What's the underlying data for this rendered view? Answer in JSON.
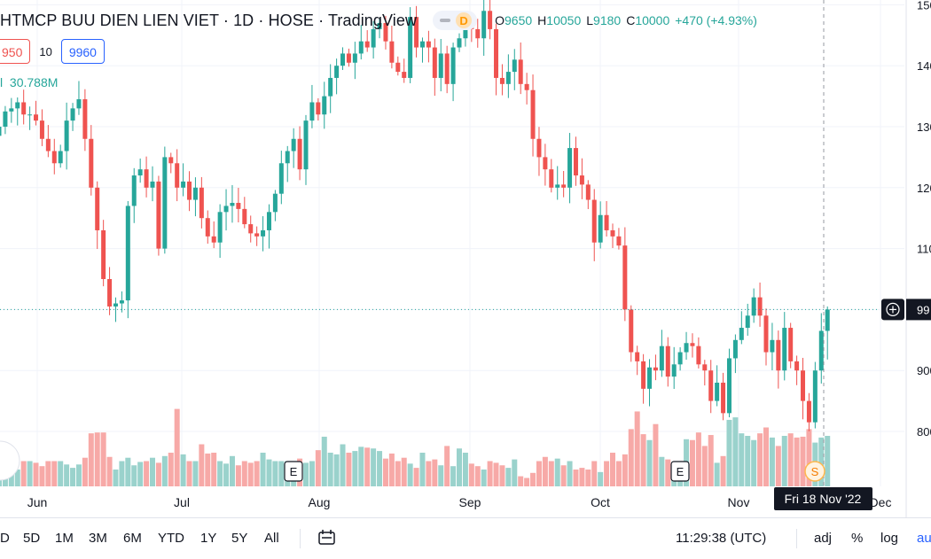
{
  "header": {
    "title": "HTMCP BUU DIEN LIEN VIET · 1D · HOSE · TradingView",
    "badge_letter": "D",
    "ohlc": [
      {
        "k": "O",
        "v": "9650"
      },
      {
        "k": "H",
        "v": "10050"
      },
      {
        "k": "L",
        "v": "9180"
      },
      {
        "k": "C",
        "v": "10000"
      },
      {
        "k": "",
        "v": "+470 (+4.93%)"
      }
    ]
  },
  "trade": {
    "sell": "950",
    "spread": "10",
    "buy": "9960"
  },
  "volume_label": {
    "prefix": "l",
    "value": "30.788M"
  },
  "axis": {
    "price_labels": [
      "150",
      "140",
      "130",
      "120",
      "110",
      "900",
      "800"
    ],
    "current_price_label": "99",
    "crosshair_date": "Fri 18 Nov '22",
    "months": [
      "Jun",
      "Jul",
      "Aug",
      "Sep",
      "Oct",
      "Nov",
      "Dec"
    ],
    "event_markers": [
      "E",
      "E",
      "S"
    ]
  },
  "bottom_bar": {
    "timeframes": [
      "D",
      "5D",
      "1M",
      "3M",
      "6M",
      "YTD",
      "1Y",
      "5Y",
      "All"
    ],
    "clock": "11:29:38 (UTC)",
    "adj": "adj",
    "percent": "%",
    "log": "log",
    "auto": "au"
  },
  "colors": {
    "up": "#26a69a",
    "down": "#ef5350",
    "vol_up": "#9ad2cc",
    "vol_down": "#f7a9a7",
    "grid": "#f0f3fa",
    "crosshair": "#9598a1"
  },
  "chart_data": {
    "type": "candlestick",
    "title": "HTMCP BUU DIEN LIEN VIET · 1D · HOSE",
    "x_range": [
      "2022-05-25",
      "2022-11-18"
    ],
    "ylim": [
      7400,
      15200
    ],
    "y_ticks": [
      8000,
      9000,
      10000,
      11000,
      12000,
      13000,
      14000,
      15000
    ],
    "current_price": 10000,
    "last_bar": {
      "open": 9650,
      "high": 10050,
      "low": 9180,
      "close": 10000,
      "change": 470,
      "change_pct": 4.93,
      "volume": "30.788M"
    },
    "closes": [
      13000,
      13250,
      13300,
      13400,
      13200,
      13200,
      13100,
      12800,
      12600,
      12400,
      12600,
      13100,
      13300,
      13450,
      12800,
      12000,
      11300,
      10500,
      10050,
      10100,
      10150,
      11700,
      12200,
      12300,
      12000,
      12100,
      11000,
      12500,
      12400,
      12000,
      12100,
      11800,
      12000,
      11500,
      11200,
      11100,
      11600,
      11700,
      11750,
      11650,
      11400,
      11250,
      11200,
      11300,
      11600,
      11900,
      12400,
      12600,
      12800,
      12300,
      13100,
      13400,
      13200,
      13500,
      13800,
      14000,
      14200,
      14050,
      14200,
      14400,
      14300,
      14600,
      14700,
      14400,
      14050,
      13900,
      13800,
      14800,
      14300,
      14400,
      14300,
      13800,
      14200,
      13700,
      14300,
      14450,
      14700,
      14600,
      14450,
      14900,
      14600,
      13800,
      13700,
      13900,
      14100,
      13700,
      13600,
      12800,
      12500,
      12300,
      12000,
      12050,
      12000,
      12650,
      12200,
      12050,
      11800,
      11100,
      11550,
      11300,
      11200,
      11050,
      10000,
      9300,
      9150,
      8700,
      9050,
      9000,
      9400,
      8900,
      9100,
      9300,
      9450,
      9400,
      9100,
      9000,
      8500,
      8800,
      8300,
      9200,
      9500,
      9700,
      9900,
      10200,
      9900,
      9300,
      9500,
      9000,
      9700,
      9150,
      9000,
      8500,
      8150,
      9000,
      9650,
      10000
    ],
    "volumes_relative": [
      0.28,
      0.28,
      0.27,
      0.2,
      0.3,
      0.3,
      0.28,
      0.24,
      0.3,
      0.3,
      0.3,
      0.26,
      0.22,
      0.26,
      0.34,
      0.63,
      0.64,
      0.64,
      0.35,
      0.2,
      0.3,
      0.34,
      0.25,
      0.29,
      0.3,
      0.34,
      0.28,
      0.36,
      0.4,
      0.92,
      0.38,
      0.3,
      0.3,
      0.5,
      0.39,
      0.4,
      0.3,
      0.27,
      0.36,
      0.25,
      0.3,
      0.28,
      0.3,
      0.4,
      0.32,
      0.3,
      0.3,
      0.3,
      0.2,
      0.33,
      0.28,
      0.3,
      0.43,
      0.59,
      0.4,
      0.38,
      0.5,
      0.4,
      0.42,
      0.47,
      0.46,
      0.45,
      0.42,
      0.33,
      0.39,
      0.3,
      0.34,
      0.27,
      0.22,
      0.4,
      0.3,
      0.32,
      0.25,
      0.48,
      0.24,
      0.45,
      0.4,
      0.27,
      0.24,
      0.2,
      0.3,
      0.28,
      0.25,
      0.22,
      0.32,
      0.12,
      0.1,
      0.16,
      0.3,
      0.35,
      0.3,
      0.33,
      0.25,
      0.3,
      0.2,
      0.22,
      0.2,
      0.3,
      0.17,
      0.3,
      0.4,
      0.3,
      0.38,
      0.68,
      0.89,
      0.62,
      0.55,
      0.74,
      0.35,
      0.32,
      0.27,
      0.3,
      0.56,
      0.55,
      0.64,
      0.48,
      0.61,
      0.28,
      0.36,
      0.79,
      0.82,
      0.63,
      0.6,
      0.55,
      0.63,
      0.7,
      0.58,
      0.48,
      0.6,
      0.63,
      0.58,
      0.59,
      0.68,
      0.52,
      0.58,
      0.6
    ]
  }
}
